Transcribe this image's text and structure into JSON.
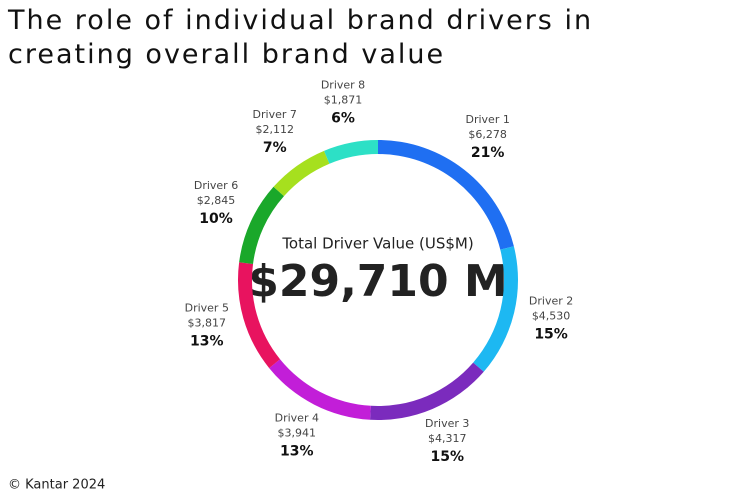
{
  "chart_data": {
    "type": "donut",
    "title": "The role of individual brand drivers in creating overall brand value",
    "center_title": "Total Driver Value (US$M)",
    "total": 29710,
    "total_label": "$29,710 M",
    "categories": [
      "Driver 1",
      "Driver 2",
      "Driver 3",
      "Driver 4",
      "Driver 5",
      "Driver 6",
      "Driver 7",
      "Driver 8"
    ],
    "values": [
      6278,
      4530,
      4317,
      3941,
      3817,
      2845,
      2112,
      1871
    ],
    "value_labels": [
      "$6,278",
      "$4,530",
      "$4,317",
      "$3,941",
      "$3,817",
      "$2,845",
      "$2,112",
      "$1,871"
    ],
    "shares": [
      21,
      15,
      15,
      13,
      13,
      10,
      7,
      6
    ],
    "share_labels": [
      "21%",
      "15%",
      "15%",
      "13%",
      "13%",
      "10%",
      "7%",
      "6%"
    ],
    "colors": [
      "#1f6ff2",
      "#1db8f2",
      "#7b2bbd",
      "#c21ed8",
      "#e8135f",
      "#1aa82a",
      "#a6e01e",
      "#2de0c6"
    ],
    "source": "© Kantar 2024"
  }
}
